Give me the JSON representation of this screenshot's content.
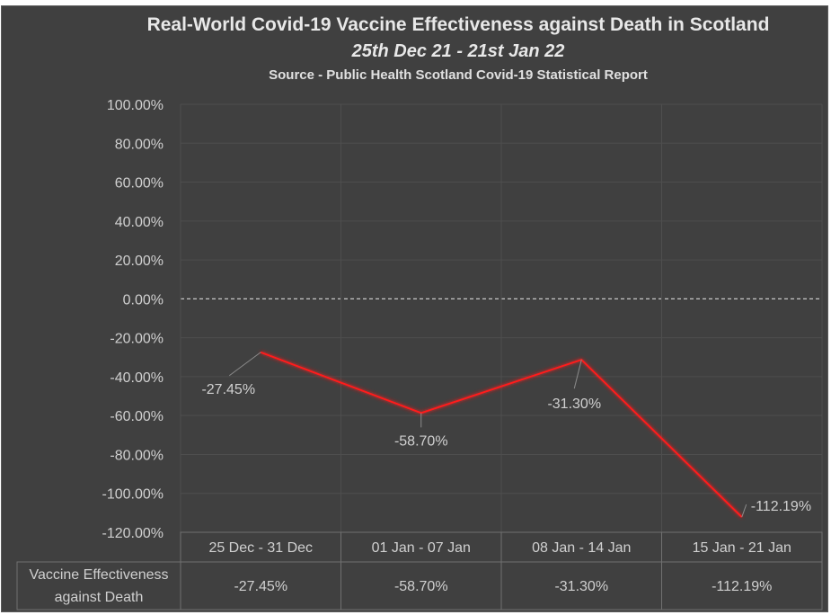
{
  "chart_data": {
    "type": "line",
    "title": "Real-World Covid-19 Vaccine Effectiveness against Death in Scotland",
    "subtitle": "25th Dec 21 - 21st Jan 22",
    "source": "Source - Public Health Scotland Covid-19 Statistical Report",
    "xlabel": "",
    "ylabel": "",
    "categories": [
      "25 Dec - 31 Dec",
      "01 Jan - 07 Jan",
      "08 Jan - 14 Jan",
      "15 Jan - 21 Jan"
    ],
    "series": [
      {
        "name": "Vaccine Effectiveness against Death",
        "name_lines": [
          "Vaccine Effectiveness",
          "against Death"
        ],
        "values": [
          -27.45,
          -58.7,
          -31.3,
          -112.19
        ],
        "labels": [
          "-27.45%",
          "-58.70%",
          "-31.30%",
          "-112.19%"
        ],
        "color": "#ff1a1a"
      }
    ],
    "ylim": [
      -120,
      100
    ],
    "yticks": [
      100,
      80,
      60,
      40,
      20,
      0,
      -20,
      -40,
      -60,
      -80,
      -100,
      -120
    ],
    "ytick_labels": [
      "100.00%",
      "80.00%",
      "60.00%",
      "40.00%",
      "20.00%",
      "0.00%",
      "-20.00%",
      "-40.00%",
      "-60.00%",
      "-80.00%",
      "-100.00%",
      "-120.00%"
    ],
    "grid": true,
    "zero_line": "dashed",
    "data_table": true,
    "legend": "none",
    "colors": {
      "background": "#404040",
      "grid": "#4e4e4e",
      "text": "#d0d0d0",
      "line": "#ff1a1a",
      "zero_line": "#c8c8c8"
    }
  }
}
